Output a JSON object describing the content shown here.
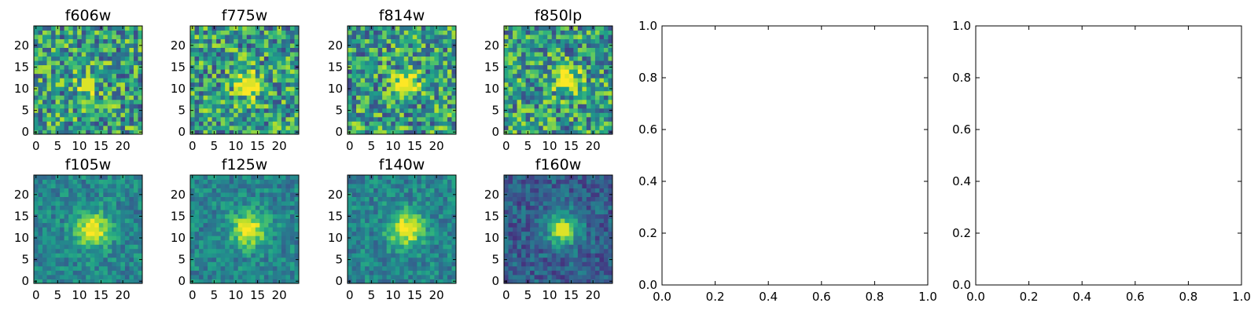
{
  "chart_data": [
    {
      "type": "heatmap",
      "title": "f606w",
      "xticks": [
        "0",
        "5",
        "10",
        "15",
        "20"
      ],
      "yticks": [
        "0",
        "5",
        "10",
        "15",
        "20"
      ],
      "grid_size": [
        25,
        25
      ],
      "peak": [
        12,
        11
      ],
      "peak_level": "moderate",
      "background": "noisy",
      "colormap": "viridis"
    },
    {
      "type": "heatmap",
      "title": "f775w",
      "xticks": [
        "0",
        "5",
        "10",
        "15",
        "20"
      ],
      "yticks": [
        "0",
        "5",
        "10",
        "15",
        "20"
      ],
      "grid_size": [
        25,
        25
      ],
      "peak": [
        13,
        11
      ],
      "peak_level": "bright",
      "background": "noisy",
      "colormap": "viridis"
    },
    {
      "type": "heatmap",
      "title": "f814w",
      "xticks": [
        "0",
        "5",
        "10",
        "15",
        "20"
      ],
      "yticks": [
        "0",
        "5",
        "10",
        "15",
        "20"
      ],
      "grid_size": [
        25,
        25
      ],
      "peak": [
        13,
        11
      ],
      "peak_level": "bright",
      "background": "noisy",
      "colormap": "viridis"
    },
    {
      "type": "heatmap",
      "title": "f850lp",
      "xticks": [
        "0",
        "5",
        "10",
        "15",
        "20"
      ],
      "yticks": [
        "0",
        "5",
        "10",
        "15",
        "20"
      ],
      "grid_size": [
        25,
        25
      ],
      "peak": [
        14,
        12
      ],
      "peak_level": "bright",
      "background": "noisy",
      "colormap": "viridis"
    },
    {
      "type": "scatter",
      "title": "",
      "x": [],
      "y": [],
      "xlim": [
        0.0,
        1.0
      ],
      "ylim": [
        0.0,
        1.0
      ],
      "xticks": [
        "0.0",
        "0.2",
        "0.4",
        "0.6",
        "0.8",
        "1.0"
      ],
      "yticks": [
        "0.0",
        "0.2",
        "0.4",
        "0.6",
        "0.8",
        "1.0"
      ]
    },
    {
      "type": "scatter",
      "title": "",
      "x": [],
      "y": [],
      "xlim": [
        0.0,
        1.0
      ],
      "ylim": [
        0.0,
        1.0
      ],
      "xticks": [
        "0.0",
        "0.2",
        "0.4",
        "0.6",
        "0.8",
        "1.0"
      ],
      "yticks": [
        "0.0",
        "0.2",
        "0.4",
        "0.6",
        "0.8",
        "1.0"
      ]
    },
    {
      "type": "heatmap",
      "title": "f105w",
      "xticks": [
        "0",
        "5",
        "10",
        "15",
        "20"
      ],
      "yticks": [
        "0",
        "5",
        "10",
        "15",
        "20"
      ],
      "grid_size": [
        25,
        25
      ],
      "peak": [
        13,
        12
      ],
      "peak_level": "bright",
      "background": "smooth",
      "colormap": "viridis"
    },
    {
      "type": "heatmap",
      "title": "f125w",
      "xticks": [
        "0",
        "5",
        "10",
        "15",
        "20"
      ],
      "yticks": [
        "0",
        "5",
        "10",
        "15",
        "20"
      ],
      "grid_size": [
        25,
        25
      ],
      "peak": [
        13,
        12
      ],
      "peak_level": "bright",
      "background": "smooth",
      "colormap": "viridis"
    },
    {
      "type": "heatmap",
      "title": "f140w",
      "xticks": [
        "0",
        "5",
        "10",
        "15",
        "20"
      ],
      "yticks": [
        "0",
        "5",
        "10",
        "15",
        "20"
      ],
      "grid_size": [
        25,
        25
      ],
      "peak": [
        13,
        12
      ],
      "peak_level": "bright",
      "background": "smooth",
      "colormap": "viridis"
    },
    {
      "type": "heatmap",
      "title": "f160w",
      "xticks": [
        "0",
        "5",
        "10",
        "15",
        "20"
      ],
      "yticks": [
        "0",
        "5",
        "10",
        "15",
        "20"
      ],
      "grid_size": [
        25,
        25
      ],
      "peak": [
        13,
        12
      ],
      "peak_level": "bright",
      "background": "dark",
      "colormap": "viridis"
    }
  ]
}
